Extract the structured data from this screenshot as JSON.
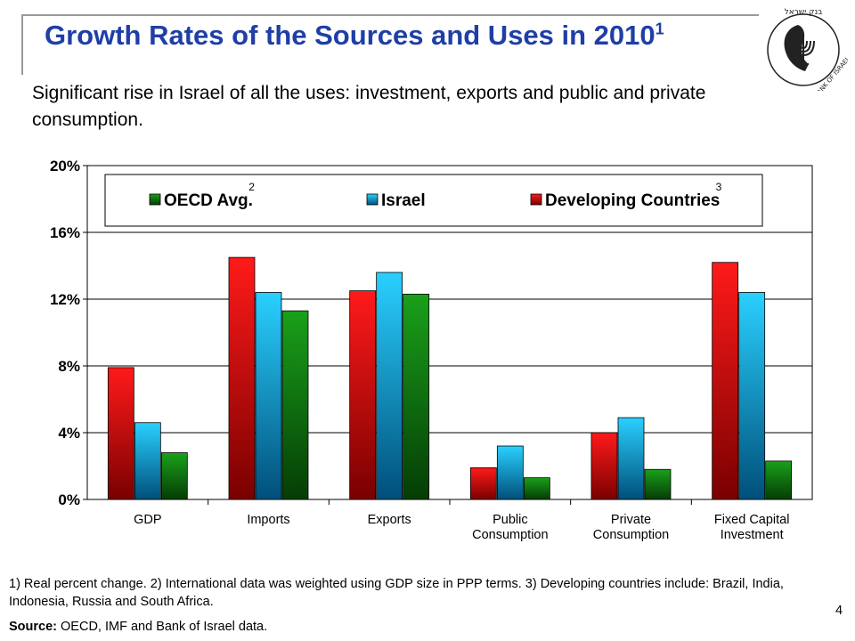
{
  "slide": {
    "title": "Growth Rates of the Sources and Uses in 2010",
    "title_sup": "1",
    "subtitle": "Significant rise in Israel of all the uses: investment, exports and public and private consumption.",
    "footnote": "1) Real percent change. 2) International data was weighted using GDP size in PPP terms. 3) Developing countries include: Brazil, India, Indonesia, Russia and South Africa.",
    "source_label": "Source:",
    "source_text": " OECD, IMF and Bank of Israel data.",
    "page_number": "4",
    "logo_text": "בנק ישראל BANK OF ISRAEL"
  },
  "chart_data": {
    "type": "bar",
    "categories": [
      [
        "GDP"
      ],
      [
        "Imports"
      ],
      [
        "Exports"
      ],
      [
        "Public",
        "Consumption"
      ],
      [
        "Private",
        "Consumption"
      ],
      [
        "Fixed Capital",
        "Investment"
      ]
    ],
    "series": [
      {
        "name": "Developing Countries",
        "sup": "3",
        "color": "#e00000",
        "values": [
          7.9,
          14.5,
          12.5,
          1.9,
          4.0,
          14.2
        ]
      },
      {
        "name": "Israel",
        "sup": "",
        "color": "#00b4f0",
        "values": [
          4.6,
          12.4,
          13.6,
          3.2,
          4.9,
          12.4
        ]
      },
      {
        "name": "OECD Avg.",
        "sup": "2",
        "color": "#138a13",
        "values": [
          2.8,
          11.3,
          12.3,
          1.3,
          1.8,
          2.3
        ]
      }
    ],
    "legend_order": [
      "OECD Avg.",
      "Israel",
      "Developing Countries"
    ],
    "ylim": [
      0,
      20
    ],
    "yticks": [
      0,
      4,
      8,
      12,
      16,
      20
    ],
    "ytick_labels": [
      "0%",
      "4%",
      "8%",
      "12%",
      "16%",
      "20%"
    ],
    "grid": true,
    "legend_position": "top"
  }
}
